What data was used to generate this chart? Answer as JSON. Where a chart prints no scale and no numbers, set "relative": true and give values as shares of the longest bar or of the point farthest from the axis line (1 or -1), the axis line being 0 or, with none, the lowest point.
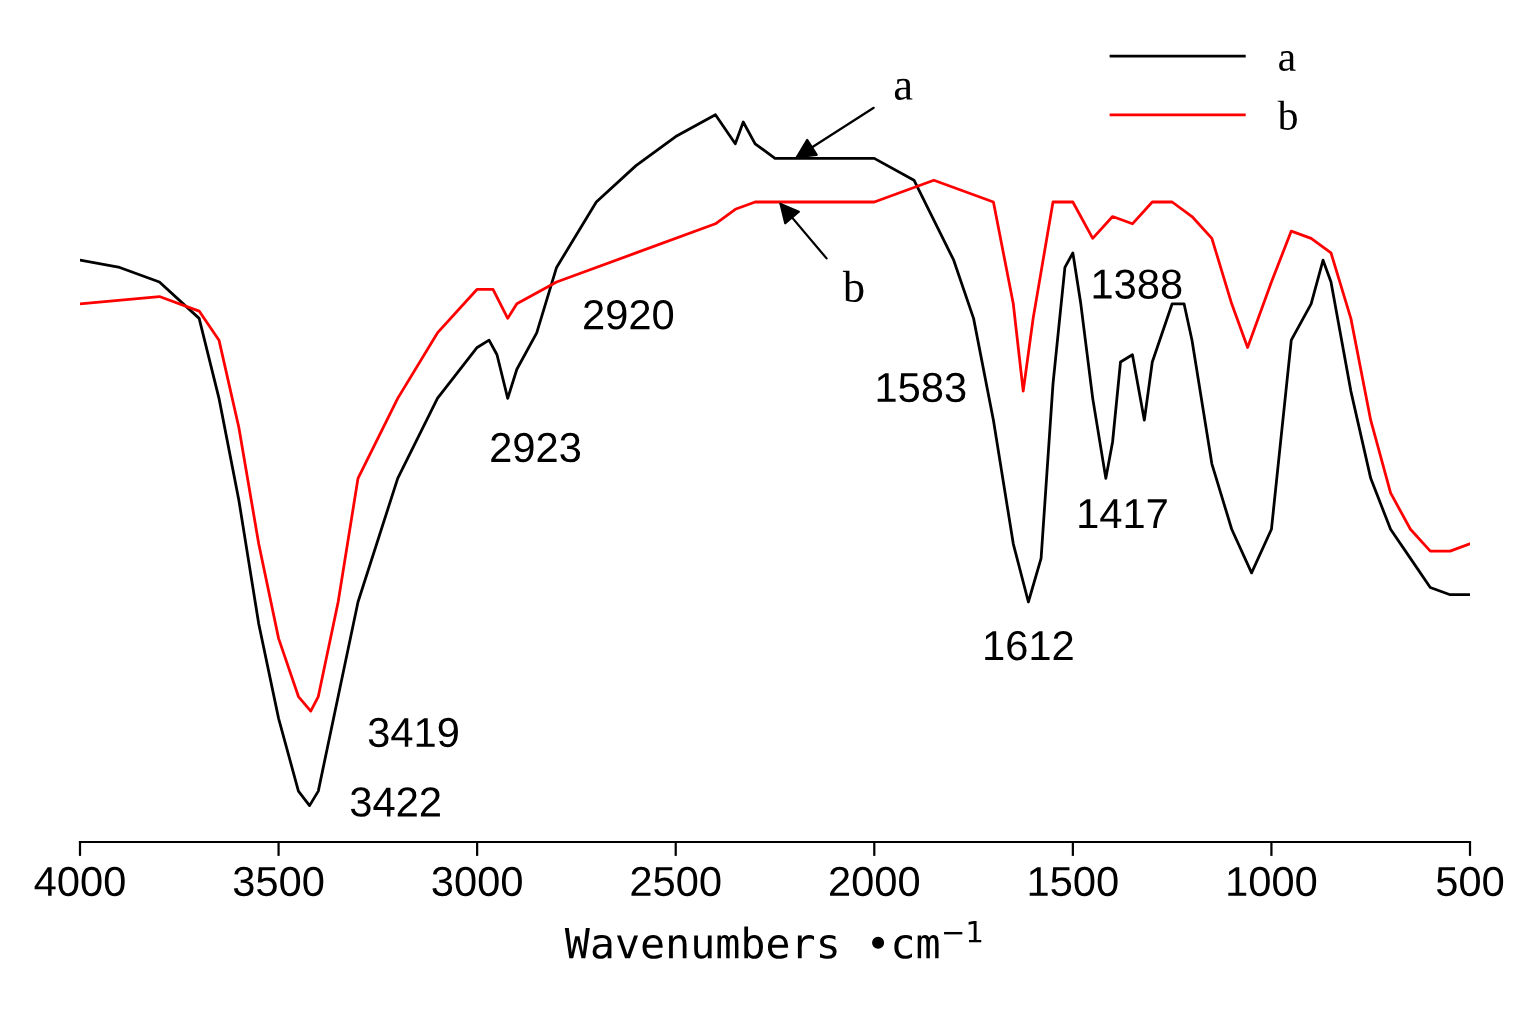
{
  "chart_data": {
    "type": "line",
    "relative": true,
    "xlabel": "Wavenumbers •cm$^{−1}$",
    "xlim": [
      4000,
      500
    ],
    "xticks": [
      4000,
      3500,
      3000,
      2500,
      2000,
      1500,
      1000,
      500
    ],
    "legend": "top right",
    "grid": false,
    "marker": "none",
    "line_style": "solid",
    "series": [
      {
        "name": "a",
        "color": "#000000",
        "x": [
          4000,
          3900,
          3800,
          3700,
          3650,
          3600,
          3550,
          3500,
          3450,
          3422,
          3400,
          3350,
          3300,
          3200,
          3100,
          3000,
          2970,
          2950,
          2923,
          2900,
          2850,
          2800,
          2700,
          2600,
          2500,
          2400,
          2350,
          2330,
          2300,
          2250,
          2100,
          2000,
          1900,
          1800,
          1750,
          1700,
          1650,
          1612,
          1580,
          1550,
          1520,
          1500,
          1480,
          1450,
          1417,
          1400,
          1380,
          1350,
          1320,
          1300,
          1250,
          1220,
          1200,
          1150,
          1100,
          1050,
          1000,
          950,
          900,
          870,
          850,
          800,
          750,
          700,
          650,
          600,
          550,
          500
        ],
        "values": [
          0.8,
          0.79,
          0.77,
          0.72,
          0.61,
          0.47,
          0.3,
          0.17,
          0.07,
          0.05,
          0.07,
          0.2,
          0.33,
          0.5,
          0.61,
          0.68,
          0.69,
          0.67,
          0.61,
          0.65,
          0.7,
          0.79,
          0.88,
          0.93,
          0.97,
          1.0,
          0.96,
          0.99,
          0.96,
          0.94,
          0.94,
          0.94,
          0.91,
          0.8,
          0.72,
          0.58,
          0.41,
          0.33,
          0.39,
          0.63,
          0.79,
          0.81,
          0.74,
          0.61,
          0.5,
          0.55,
          0.66,
          0.67,
          0.58,
          0.66,
          0.74,
          0.74,
          0.69,
          0.52,
          0.43,
          0.37,
          0.43,
          0.69,
          0.74,
          0.8,
          0.77,
          0.62,
          0.5,
          0.43,
          0.39,
          0.35,
          0.34,
          0.34
        ]
      },
      {
        "name": "b",
        "color": "#ff0000",
        "x": [
          4000,
          3800,
          3700,
          3650,
          3600,
          3550,
          3500,
          3450,
          3419,
          3400,
          3350,
          3300,
          3200,
          3100,
          3000,
          2960,
          2923,
          2900,
          2800,
          2600,
          2400,
          2350,
          2300,
          2200,
          2000,
          1900,
          1850,
          1800,
          1700,
          1650,
          1625,
          1600,
          1550,
          1500,
          1450,
          1400,
          1350,
          1300,
          1250,
          1200,
          1150,
          1100,
          1060,
          1000,
          950,
          900,
          850,
          800,
          750,
          700,
          650,
          600,
          550,
          500
        ],
        "values": [
          0.74,
          0.75,
          0.73,
          0.69,
          0.57,
          0.41,
          0.28,
          0.2,
          0.18,
          0.2,
          0.33,
          0.5,
          0.61,
          0.7,
          0.76,
          0.76,
          0.72,
          0.74,
          0.77,
          0.81,
          0.85,
          0.87,
          0.88,
          0.88,
          0.88,
          0.9,
          0.91,
          0.9,
          0.88,
          0.74,
          0.62,
          0.72,
          0.88,
          0.88,
          0.83,
          0.86,
          0.85,
          0.88,
          0.88,
          0.86,
          0.83,
          0.74,
          0.68,
          0.77,
          0.84,
          0.83,
          0.81,
          0.72,
          0.58,
          0.48,
          0.43,
          0.4,
          0.4,
          0.41
        ]
      }
    ],
    "annotations": [
      {
        "text": "3422",
        "x": 3422,
        "y": 0.05
      },
      {
        "text": "3419",
        "x": 3419,
        "y": 0.18
      },
      {
        "text": "2923",
        "x": 2923,
        "y": 0.61
      },
      {
        "text": "2920",
        "x": 2920,
        "y": 0.72
      },
      {
        "text": "1612",
        "x": 1612,
        "y": 0.33
      },
      {
        "text": "1583",
        "x": 1715,
        "y": 0.62
      },
      {
        "text": "1417",
        "x": 1417,
        "y": 0.5
      },
      {
        "text": "1388",
        "x": 1388,
        "y": 0.85
      },
      {
        "text": "a",
        "x": 2200,
        "y": 0.94
      },
      {
        "text": "b",
        "x": 2240,
        "y": 0.88
      }
    ]
  }
}
